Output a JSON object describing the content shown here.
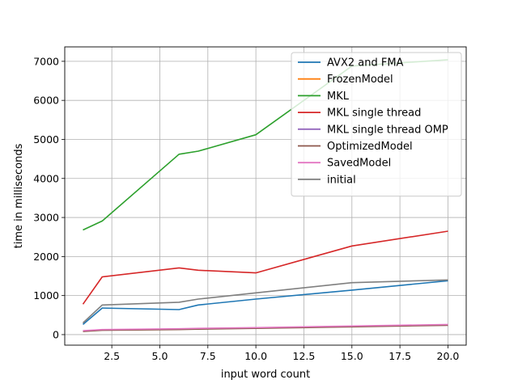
{
  "chart_data": {
    "type": "line",
    "title": "",
    "xlabel": "input word count",
    "ylabel": "time in milliseconds",
    "xlim": [
      0.05,
      20.95
    ],
    "ylim": [
      -270,
      7370
    ],
    "xticks": [
      2.5,
      5.0,
      7.5,
      10.0,
      12.5,
      15.0,
      17.5,
      20.0
    ],
    "xtick_labels": [
      "2.5",
      "5.0",
      "7.5",
      "10.0",
      "12.5",
      "15.0",
      "17.5",
      "20.0"
    ],
    "yticks": [
      0,
      1000,
      2000,
      3000,
      4000,
      5000,
      6000,
      7000
    ],
    "ytick_labels": [
      "0",
      "1000",
      "2000",
      "3000",
      "4000",
      "5000",
      "6000",
      "7000"
    ],
    "grid": true,
    "legend_position": "top-right",
    "x": [
      1,
      2,
      6,
      7,
      10,
      15,
      20
    ],
    "series": [
      {
        "name": "AVX2 and FMA",
        "color": "#1f77b4",
        "values": [
          260,
          680,
          640,
          760,
          910,
          1140,
          1380
        ]
      },
      {
        "name": "FrozenModel",
        "color": "#ff7f0e",
        "values": [
          90,
          120,
          140,
          150,
          170,
          210,
          250
        ]
      },
      {
        "name": "MKL",
        "color": "#2ca02c",
        "values": [
          2680,
          2910,
          4620,
          4700,
          5120,
          6880,
          7040
        ]
      },
      {
        "name": "MKL single thread",
        "color": "#d62728",
        "values": [
          780,
          1480,
          1710,
          1650,
          1580,
          2270,
          2650
        ]
      },
      {
        "name": "MKL single thread OMP",
        "color": "#9467bd",
        "values": [
          90,
          120,
          140,
          150,
          170,
          210,
          250
        ]
      },
      {
        "name": "OptimizedModel",
        "color": "#8c564b",
        "values": [
          80,
          110,
          130,
          140,
          160,
          200,
          240
        ]
      },
      {
        "name": "SavedModel",
        "color": "#e377c2",
        "values": [
          100,
          130,
          150,
          160,
          180,
          220,
          260
        ]
      },
      {
        "name": "initial",
        "color": "#7f7f7f",
        "values": [
          300,
          760,
          830,
          910,
          1070,
          1330,
          1400
        ]
      }
    ]
  }
}
